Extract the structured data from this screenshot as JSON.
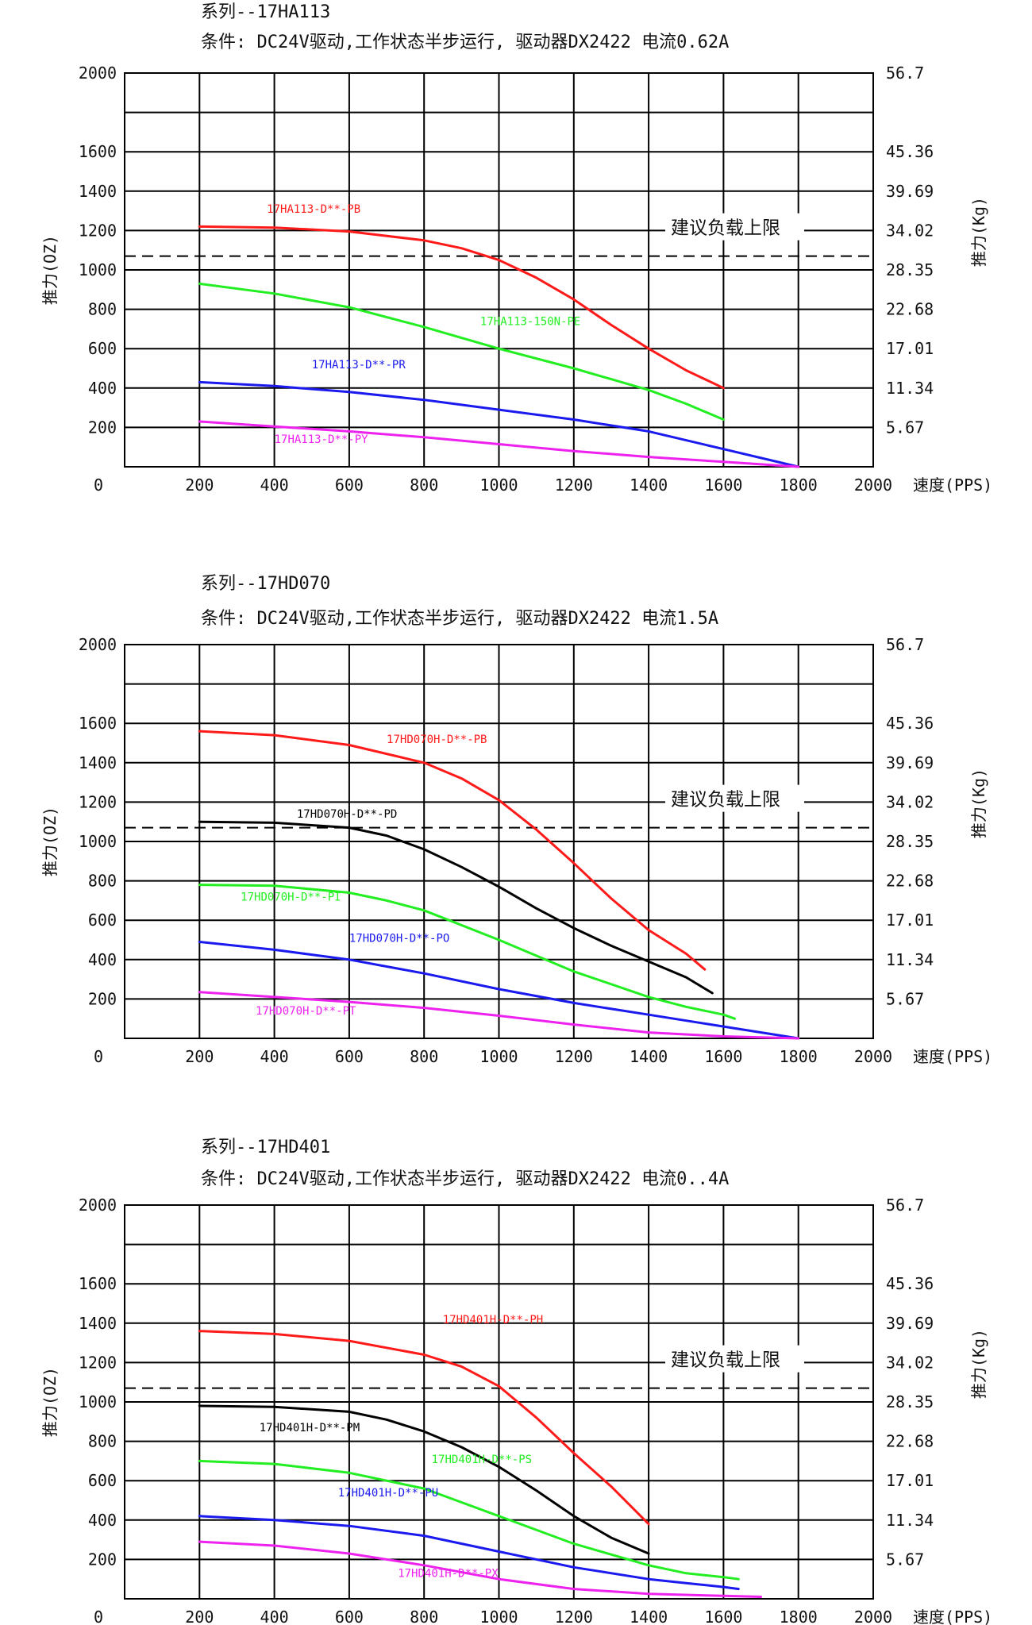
{
  "chart_data": [
    {
      "type": "line",
      "title": "系列--17HA113",
      "subtitle": "条件: DC24V驱动,工作状态半步运行, 驱动器DX2422 电流0.62A",
      "ylabel": "推力(OZ)",
      "ylabel_right": "推力(Kg)",
      "xlabel": "速度(PPS)",
      "xlim": [
        0,
        2000
      ],
      "ylim": [
        0,
        2000
      ],
      "x_ticks": [
        "0",
        "200",
        "400",
        "600",
        "800",
        "1000",
        "1200",
        "1400",
        "1600",
        "1800",
        "2000"
      ],
      "y_ticks": [
        "0",
        "200",
        "400",
        "600",
        "800",
        "1000",
        "1200",
        "1400",
        "1600",
        "2000"
      ],
      "y_ticks_right": [
        "56.7",
        "45.36",
        "39.69",
        "34.02",
        "28.35",
        "22.68",
        "17.01",
        "11.34",
        "5.67"
      ],
      "limit_label": "建议负载上限",
      "limit_value": 1070,
      "grid": true,
      "series": [
        {
          "name": "17HA113-D**-PB",
          "color": "#ff1a1a",
          "x": [
            200,
            400,
            600,
            800,
            900,
            1000,
            1100,
            1200,
            1300,
            1400,
            1500,
            1600
          ],
          "y": [
            1220,
            1215,
            1195,
            1150,
            1110,
            1050,
            960,
            850,
            720,
            600,
            490,
            400
          ]
        },
        {
          "name": "17HA113-150N-PE",
          "color": "#22ee22",
          "x": [
            200,
            400,
            600,
            800,
            1000,
            1200,
            1400,
            1500,
            1600
          ],
          "y": [
            930,
            880,
            810,
            710,
            600,
            500,
            390,
            320,
            240
          ]
        },
        {
          "name": "17HA113-D**-PR",
          "color": "#1a1aee",
          "x": [
            200,
            400,
            600,
            800,
            1000,
            1200,
            1400,
            1600,
            1800
          ],
          "y": [
            430,
            410,
            380,
            340,
            290,
            240,
            180,
            90,
            0
          ]
        },
        {
          "name": "17HA113-D**-PY",
          "color": "#ee22ee",
          "x": [
            200,
            400,
            600,
            800,
            1000,
            1200,
            1400,
            1600,
            1800
          ],
          "y": [
            230,
            205,
            180,
            150,
            115,
            80,
            50,
            25,
            0
          ]
        }
      ]
    },
    {
      "type": "line",
      "title": "系列--17HD070",
      "subtitle": "条件: DC24V驱动,工作状态半步运行, 驱动器DX2422 电流1.5A",
      "ylabel": "推力(OZ)",
      "ylabel_right": "推力(Kg)",
      "xlabel": "速度(PPS)",
      "xlim": [
        0,
        2000
      ],
      "ylim": [
        0,
        2000
      ],
      "x_ticks": [
        "0",
        "200",
        "400",
        "600",
        "800",
        "1000",
        "1200",
        "1400",
        "1600",
        "1800",
        "2000"
      ],
      "y_ticks": [
        "0",
        "200",
        "400",
        "600",
        "800",
        "1000",
        "1200",
        "1400",
        "1600",
        "2000"
      ],
      "y_ticks_right": [
        "56.7",
        "45.36",
        "39.69",
        "34.02",
        "28.35",
        "22.68",
        "17.01",
        "11.34",
        "5.67"
      ],
      "limit_label": "建议负载上限",
      "limit_value": 1070,
      "grid": true,
      "series": [
        {
          "name": "17HD070H-D**-PB",
          "color": "#ff1a1a",
          "x": [
            200,
            400,
            600,
            800,
            900,
            1000,
            1100,
            1200,
            1300,
            1400,
            1500,
            1550
          ],
          "y": [
            1560,
            1540,
            1490,
            1400,
            1320,
            1210,
            1060,
            890,
            710,
            550,
            430,
            350
          ]
        },
        {
          "name": "17HD070H-D**-PD",
          "color": "#000000",
          "x": [
            200,
            400,
            600,
            700,
            800,
            900,
            1000,
            1100,
            1200,
            1300,
            1400,
            1500,
            1570
          ],
          "y": [
            1100,
            1095,
            1070,
            1030,
            960,
            870,
            770,
            660,
            560,
            470,
            390,
            310,
            230
          ]
        },
        {
          "name": "17HD070H-D**-PI",
          "color": "#22ee22",
          "x": [
            200,
            400,
            600,
            700,
            800,
            1000,
            1200,
            1400,
            1500,
            1600,
            1630
          ],
          "y": [
            780,
            775,
            740,
            700,
            650,
            500,
            340,
            210,
            160,
            120,
            100
          ]
        },
        {
          "name": "17HD070H-D**-PO",
          "color": "#1a1aee",
          "x": [
            200,
            400,
            600,
            800,
            1000,
            1200,
            1400,
            1600,
            1800
          ],
          "y": [
            490,
            450,
            400,
            330,
            250,
            180,
            120,
            60,
            0
          ]
        },
        {
          "name": "17HD070H-D**-PT",
          "color": "#ee22ee",
          "x": [
            200,
            400,
            600,
            800,
            1000,
            1200,
            1400,
            1600,
            1800
          ],
          "y": [
            235,
            210,
            185,
            155,
            115,
            70,
            30,
            10,
            0
          ]
        }
      ]
    },
    {
      "type": "line",
      "title": "系列--17HD401",
      "subtitle": "条件: DC24V驱动,工作状态半步运行, 驱动器DX2422 电流0..4A",
      "ylabel": "推力(OZ)",
      "ylabel_right": "推力(Kg)",
      "xlabel": "速度(PPS)",
      "xlim": [
        0,
        2000
      ],
      "ylim": [
        0,
        2000
      ],
      "x_ticks": [
        "0",
        "200",
        "400",
        "600",
        "800",
        "1000",
        "1200",
        "1400",
        "1600",
        "1800",
        "2000"
      ],
      "y_ticks": [
        "0",
        "200",
        "400",
        "600",
        "800",
        "1000",
        "1200",
        "1400",
        "1600",
        "2000"
      ],
      "y_ticks_right": [
        "56.7",
        "45.36",
        "39.69",
        "34.02",
        "28.35",
        "22.68",
        "17.01",
        "11.34",
        "5.67"
      ],
      "limit_label": "建议负载上限",
      "limit_value": 1070,
      "grid": true,
      "series": [
        {
          "name": "17HD401H-D**-PH",
          "color": "#ff1a1a",
          "x": [
            200,
            400,
            600,
            800,
            900,
            1000,
            1100,
            1200,
            1300,
            1400
          ],
          "y": [
            1360,
            1345,
            1310,
            1240,
            1180,
            1080,
            920,
            740,
            570,
            380
          ]
        },
        {
          "name": "17HD401H-D**-PM",
          "color": "#000000",
          "x": [
            200,
            400,
            600,
            700,
            800,
            900,
            1000,
            1100,
            1200,
            1300,
            1400
          ],
          "y": [
            980,
            975,
            950,
            910,
            850,
            770,
            670,
            550,
            420,
            310,
            230
          ]
        },
        {
          "name": "17HD401H-D**-PS",
          "color": "#22ee22",
          "x": [
            200,
            400,
            600,
            800,
            1000,
            1200,
            1400,
            1500,
            1600,
            1640
          ],
          "y": [
            700,
            685,
            640,
            560,
            420,
            280,
            170,
            130,
            110,
            100
          ]
        },
        {
          "name": "17HD401H-D**-PU",
          "color": "#1a1aee",
          "x": [
            200,
            400,
            600,
            800,
            1000,
            1200,
            1400,
            1500,
            1600,
            1640
          ],
          "y": [
            420,
            400,
            370,
            320,
            240,
            160,
            100,
            80,
            60,
            50
          ]
        },
        {
          "name": "17HD401H-D**-PX",
          "color": "#ee22ee",
          "x": [
            200,
            400,
            600,
            800,
            1000,
            1200,
            1400,
            1600,
            1700
          ],
          "y": [
            290,
            270,
            230,
            170,
            100,
            50,
            25,
            15,
            10
          ]
        }
      ]
    }
  ]
}
